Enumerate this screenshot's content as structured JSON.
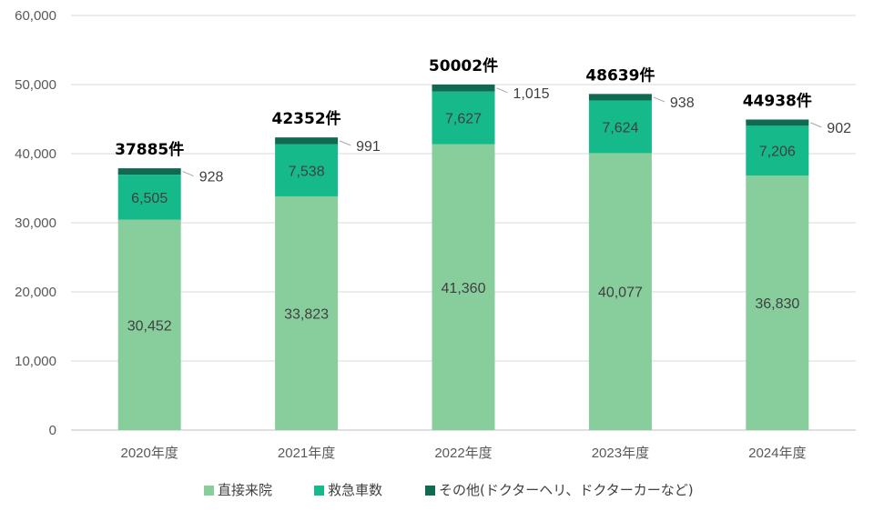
{
  "chart_data": {
    "type": "bar",
    "stacked": true,
    "categories": [
      "2020年度",
      "2021年度",
      "2022年度",
      "2023年度",
      "2024年度"
    ],
    "series": [
      {
        "name": "直接来院",
        "color": "#88CE9C",
        "values": [
          30452,
          33823,
          41360,
          40077,
          36830
        ],
        "labels": [
          "30,452",
          "33,823",
          "41,360",
          "40,077",
          "36,830"
        ]
      },
      {
        "name": "救急車数",
        "color": "#16B98A",
        "values": [
          6505,
          7538,
          7627,
          7624,
          7206
        ],
        "labels": [
          "6,505",
          "7,538",
          "7,627",
          "7,624",
          "7,206"
        ]
      },
      {
        "name": "その他(ドクターヘリ、ドクターカーなど)",
        "color": "#0E6B52",
        "values": [
          928,
          991,
          1015,
          938,
          902
        ],
        "labels": [
          "928",
          "991",
          "1,015",
          "938",
          "902"
        ]
      }
    ],
    "totals": [
      "37885件",
      "42352件",
      "50002件",
      "48639件",
      "44938件"
    ],
    "ylim": [
      0,
      60000
    ],
    "yticks": [
      0,
      10000,
      20000,
      30000,
      40000,
      50000,
      60000
    ],
    "ytick_labels": [
      "0",
      "10,000",
      "20,000",
      "30,000",
      "40,000",
      "50,000",
      "60,000"
    ],
    "grid": true,
    "legend": "bottom"
  }
}
